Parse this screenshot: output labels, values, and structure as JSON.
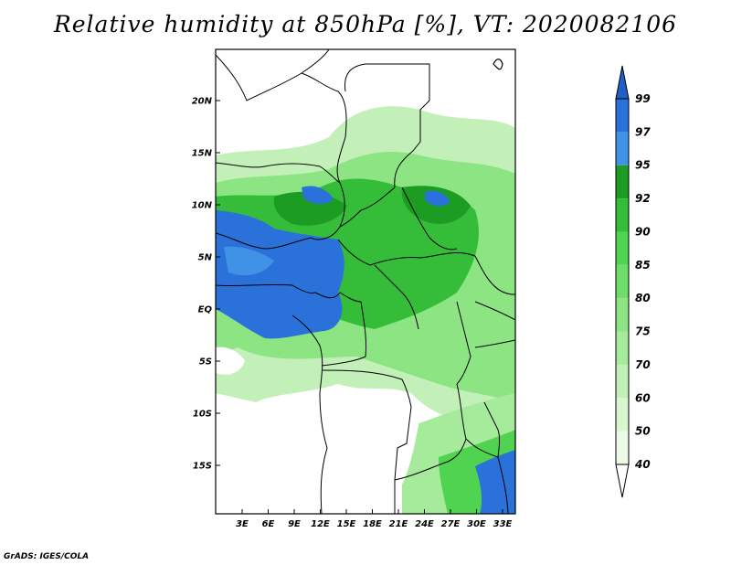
{
  "title": "Relative humidity at 850hPa [%], VT: 2020082106",
  "footer": "GrADS: IGES/COLA",
  "map": {
    "lat_labels": [
      "20N",
      "15N",
      "10N",
      "5N",
      "EQ",
      "5S",
      "10S",
      "15S"
    ],
    "lon_labels": [
      "3E",
      "6E",
      "9E",
      "12E",
      "15E",
      "18E",
      "21E",
      "24E",
      "27E",
      "30E",
      "33E"
    ]
  },
  "colorbar": {
    "levels": [
      "40",
      "50",
      "60",
      "70",
      "75",
      "80",
      "85",
      "90",
      "92",
      "95",
      "97",
      "99"
    ],
    "colors": [
      "#ecfbe8",
      "#d8f6d0",
      "#c2f0b8",
      "#a6eb9c",
      "#8ce483",
      "#6edd69",
      "#50d351",
      "#35bd3a",
      "#1d9c24",
      "#3f92e6",
      "#2a72da"
    ],
    "under_color": "#ffffff",
    "over_color": "#1e60c8"
  }
}
